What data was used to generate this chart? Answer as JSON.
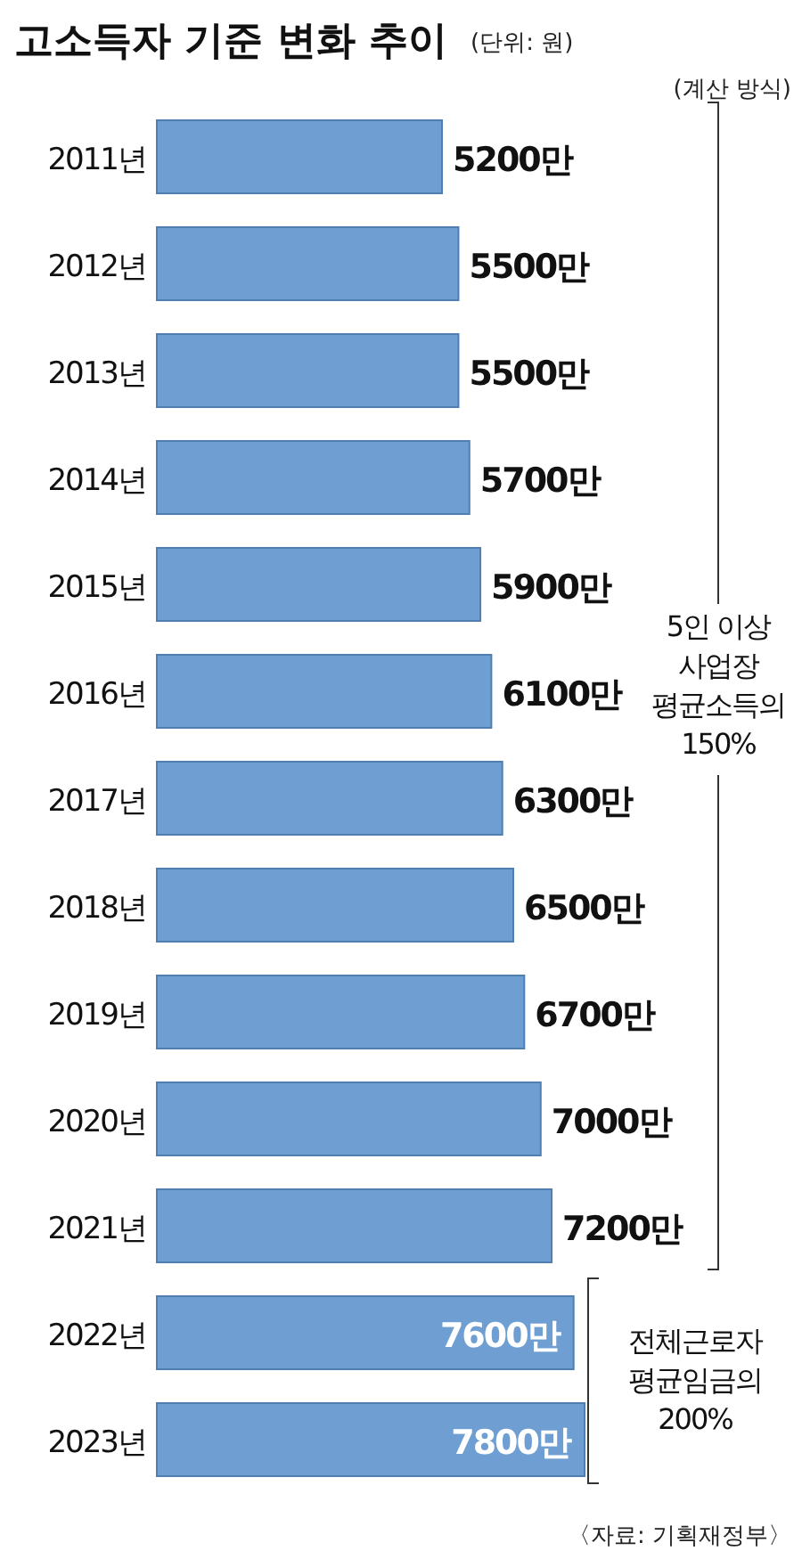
{
  "chart_data": {
    "type": "bar",
    "orientation": "horizontal",
    "title": "고소득자 기준 변화 추이",
    "subtitle": "(단위: 원)",
    "categories": [
      "2011년",
      "2012년",
      "2013년",
      "2014년",
      "2015년",
      "2016년",
      "2017년",
      "2018년",
      "2019년",
      "2020년",
      "2021년",
      "2022년",
      "2023년"
    ],
    "values": [
      5200,
      5500,
      5500,
      5700,
      5900,
      6100,
      6300,
      6500,
      6700,
      7000,
      7200,
      7600,
      7800
    ],
    "value_labels": [
      "5200만",
      "5500만",
      "5500만",
      "5700만",
      "5900만",
      "6100만",
      "6300만",
      "6500만",
      "6700만",
      "7000만",
      "7200만",
      "7600만",
      "7800만"
    ],
    "color": "#6f9fd2",
    "legend_title": "(계산 방식)",
    "annotations": [
      "5인 이상\n사업장\n평균소득의\n150%",
      "전체근로자\n평균임금의\n200%",
      "〈자료: 기획재정부〉"
    ]
  }
}
